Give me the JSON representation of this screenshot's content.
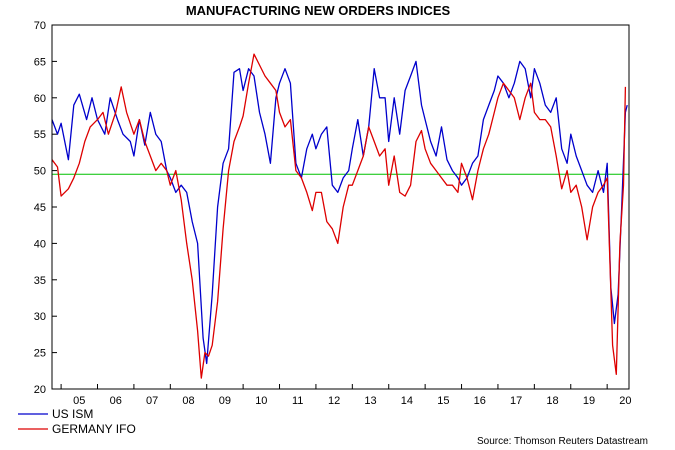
{
  "chart_data": {
    "type": "line",
    "title": "MANUFACTURING NEW ORDERS INDICES",
    "source": "Source: Thomson Reuters Datastream",
    "xlabel": "",
    "ylabel": "",
    "ylim": [
      20,
      70
    ],
    "yticks": [
      "20",
      "25",
      "30",
      "35",
      "40",
      "45",
      "50",
      "55",
      "60",
      "65",
      "70"
    ],
    "xlim": [
      2004.75,
      2020.6
    ],
    "xticks": [
      "05",
      "06",
      "07",
      "08",
      "09",
      "10",
      "11",
      "12",
      "13",
      "14",
      "15",
      "16",
      "17",
      "18",
      "19",
      "20"
    ],
    "reference_line": {
      "y": 49.5,
      "color": "#00c000"
    },
    "colors": {
      "us_ism": "#0000cc",
      "germany_ifo": "#dd0000",
      "reference": "#00c000",
      "axis": "#000000"
    },
    "legend": {
      "placement": "bottom-left"
    },
    "series": [
      {
        "name": "US ISM",
        "color": "#0000cc",
        "x": [
          2004.75,
          2004.9,
          2005.0,
          2005.2,
          2005.35,
          2005.5,
          2005.7,
          2005.85,
          2006.0,
          2006.2,
          2006.35,
          2006.55,
          2006.7,
          2006.9,
          2007.0,
          2007.15,
          2007.3,
          2007.45,
          2007.6,
          2007.75,
          2007.9,
          2008.0,
          2008.15,
          2008.3,
          2008.45,
          2008.6,
          2008.75,
          2008.9,
          2009.0,
          2009.15,
          2009.3,
          2009.45,
          2009.6,
          2009.75,
          2009.9,
          2010.0,
          2010.15,
          2010.3,
          2010.45,
          2010.6,
          2010.75,
          2010.9,
          2011.0,
          2011.15,
          2011.3,
          2011.45,
          2011.6,
          2011.75,
          2011.9,
          2012.0,
          2012.15,
          2012.3,
          2012.45,
          2012.6,
          2012.75,
          2012.9,
          2013.0,
          2013.15,
          2013.3,
          2013.45,
          2013.6,
          2013.75,
          2013.9,
          2014.0,
          2014.15,
          2014.3,
          2014.45,
          2014.6,
          2014.75,
          2014.9,
          2015.0,
          2015.15,
          2015.3,
          2015.45,
          2015.6,
          2015.75,
          2015.9,
          2016.0,
          2016.15,
          2016.3,
          2016.45,
          2016.6,
          2016.75,
          2016.9,
          2017.0,
          2017.15,
          2017.3,
          2017.45,
          2017.6,
          2017.75,
          2017.9,
          2018.0,
          2018.15,
          2018.3,
          2018.45,
          2018.6,
          2018.75,
          2018.9,
          2019.0,
          2019.15,
          2019.3,
          2019.45,
          2019.6,
          2019.75,
          2019.9,
          2020.0,
          2020.1,
          2020.2,
          2020.3,
          2020.4,
          2020.5,
          2020.55
        ],
        "values": [
          57,
          55,
          56.5,
          51.5,
          59,
          60.5,
          57,
          60,
          57,
          55,
          60,
          57,
          55,
          54,
          52,
          57,
          53.5,
          58,
          55,
          54,
          50,
          49,
          47,
          48,
          47,
          43,
          40,
          27,
          23.5,
          33,
          45,
          51,
          53,
          63.5,
          64,
          61,
          64,
          63,
          58,
          55,
          51,
          60,
          62,
          64,
          62,
          51,
          49,
          53,
          55,
          53,
          55,
          56,
          48,
          47,
          49,
          50,
          53,
          57,
          52,
          56,
          64,
          60,
          60,
          54,
          60,
          55,
          61,
          63,
          65,
          59,
          57,
          54,
          52,
          56,
          51.5,
          50,
          49,
          48,
          49,
          51,
          52,
          57,
          59,
          61,
          63,
          62,
          60,
          62,
          65,
          64,
          60,
          64,
          62,
          59,
          58,
          60,
          53,
          51,
          55,
          52,
          50,
          48,
          47,
          50,
          47,
          51,
          34,
          29,
          33,
          45,
          58,
          59
        ]
      },
      {
        "name": "GERMANY IFO",
        "color": "#dd0000",
        "x": [
          2004.75,
          2004.9,
          2005.0,
          2005.2,
          2005.35,
          2005.5,
          2005.65,
          2005.8,
          2006.0,
          2006.15,
          2006.3,
          2006.5,
          2006.65,
          2006.8,
          2007.0,
          2007.15,
          2007.3,
          2007.45,
          2007.6,
          2007.75,
          2007.9,
          2008.0,
          2008.15,
          2008.3,
          2008.45,
          2008.6,
          2008.75,
          2008.85,
          2008.95,
          2009.05,
          2009.15,
          2009.3,
          2009.45,
          2009.6,
          2009.75,
          2009.9,
          2010.0,
          2010.15,
          2010.3,
          2010.45,
          2010.6,
          2010.75,
          2010.9,
          2011.0,
          2011.15,
          2011.3,
          2011.45,
          2011.6,
          2011.75,
          2011.9,
          2012.0,
          2012.15,
          2012.3,
          2012.45,
          2012.6,
          2012.75,
          2012.9,
          2013.0,
          2013.15,
          2013.3,
          2013.45,
          2013.6,
          2013.75,
          2013.9,
          2014.0,
          2014.15,
          2014.3,
          2014.45,
          2014.6,
          2014.75,
          2014.9,
          2015.0,
          2015.15,
          2015.3,
          2015.45,
          2015.6,
          2015.75,
          2015.9,
          2016.0,
          2016.15,
          2016.3,
          2016.45,
          2016.6,
          2016.75,
          2016.9,
          2017.0,
          2017.15,
          2017.3,
          2017.45,
          2017.6,
          2017.75,
          2017.9,
          2018.0,
          2018.15,
          2018.3,
          2018.45,
          2018.6,
          2018.75,
          2018.9,
          2019.0,
          2019.15,
          2019.3,
          2019.45,
          2019.6,
          2019.75,
          2019.9,
          2020.0,
          2020.15,
          2020.25,
          2020.35,
          2020.45,
          2020.5
        ],
        "values": [
          51.5,
          50.5,
          46.5,
          47.5,
          49,
          51,
          54,
          56,
          57,
          58,
          55,
          58,
          61.5,
          58,
          55,
          57,
          54,
          52,
          50,
          51,
          50,
          48,
          50,
          46,
          40,
          35,
          28,
          21.5,
          25,
          24.5,
          26,
          32,
          42,
          50,
          54,
          56,
          57.5,
          62,
          66,
          64.5,
          63,
          62,
          61,
          58,
          56,
          57,
          50,
          49,
          47,
          44.5,
          47,
          47,
          43,
          42,
          40,
          45,
          48,
          48,
          50,
          52,
          56,
          54,
          52,
          53,
          48,
          52,
          47,
          46.5,
          48,
          54,
          55.5,
          53,
          51,
          50,
          49,
          48,
          48,
          47,
          51,
          49,
          46,
          50,
          53,
          55,
          58,
          60,
          62,
          61,
          60,
          57,
          60,
          62,
          58,
          57,
          57,
          56,
          52,
          47.5,
          50,
          47,
          48,
          45,
          40.5,
          45,
          47,
          48,
          49,
          26,
          22,
          40,
          48,
          61.5
        ]
      }
    ]
  }
}
